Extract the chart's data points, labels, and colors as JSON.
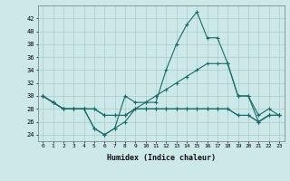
{
  "xlabel": "Humidex (Indice chaleur)",
  "x": [
    0,
    1,
    2,
    3,
    4,
    5,
    6,
    7,
    8,
    9,
    10,
    11,
    12,
    13,
    14,
    15,
    16,
    17,
    18,
    19,
    20,
    21,
    22,
    23
  ],
  "line1": [
    30,
    29,
    28,
    28,
    28,
    25,
    24,
    25,
    30,
    29,
    29,
    29,
    34,
    38,
    41,
    43,
    39,
    39,
    35,
    30,
    30,
    27,
    28,
    27
  ],
  "line2": [
    30,
    29,
    28,
    28,
    28,
    25,
    24,
    25,
    26,
    28,
    29,
    30,
    31,
    32,
    33,
    34,
    35,
    35,
    35,
    30,
    30,
    26,
    27,
    27
  ],
  "line3": [
    30,
    29,
    28,
    28,
    28,
    28,
    27,
    27,
    27,
    28,
    28,
    28,
    28,
    28,
    28,
    28,
    28,
    28,
    28,
    27,
    27,
    26,
    27,
    27
  ],
  "line4": [
    30,
    29,
    28,
    28,
    28,
    28,
    27,
    27,
    27,
    28,
    28,
    28,
    28,
    28,
    28,
    28,
    28,
    28,
    28,
    27,
    27,
    26,
    27,
    27
  ],
  "bg_color": "#cce8e8",
  "grid_color": "#aacccc",
  "line_color": "#1a6b6b",
  "ylim": [
    23,
    44
  ],
  "yticks": [
    24,
    26,
    28,
    30,
    32,
    34,
    36,
    38,
    40,
    42
  ],
  "xticks": [
    0,
    1,
    2,
    3,
    4,
    5,
    6,
    7,
    8,
    9,
    10,
    11,
    12,
    13,
    14,
    15,
    16,
    17,
    18,
    19,
    20,
    21,
    22,
    23
  ]
}
